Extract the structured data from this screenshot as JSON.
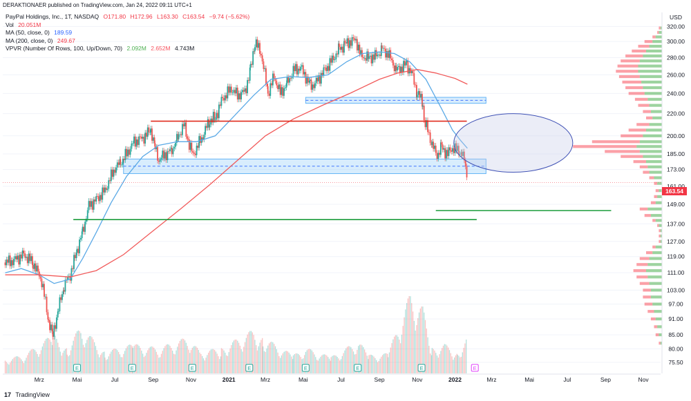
{
  "header": {
    "text": "DERAKTIONAER published on TradingView.com, Jan 24, 2022 09:11 UTC+1"
  },
  "legend": {
    "symbol": "PayPal Holdings, Inc., 1T, NASDAQ",
    "open": "O171.80",
    "high": "H172.96",
    "low": "L163.30",
    "close": "C163.54",
    "change": "−9.74 (−5.62%)",
    "vol_label": "Vol",
    "vol_value": "20.051M",
    "ma50_label": "MA (50, close, 0)",
    "ma50_value": "189.59",
    "ma200_label": "MA (200, close, 0)",
    "ma200_value": "249.67",
    "vpvr_label": "VPVR (Number Of Rows, 100, Up/Down, 70)",
    "vpvr_up": "2.092M",
    "vpvr_down": "2.652M",
    "vpvr_total": "4.743M"
  },
  "footer": {
    "logo": "17",
    "brand": "TradingView"
  },
  "colors": {
    "up": "#26a69a",
    "down": "#ef5350",
    "ma50": "#5aa9e6",
    "ma200": "#f15a5a",
    "vpvr_up": "#4caf50",
    "vpvr_down": "#f7525f",
    "price": "#f23645"
  },
  "chart_data": {
    "type": "candlestick",
    "title": "PayPal Holdings, Inc., 1T, NASDAQ",
    "currency": "USD",
    "y_scale": "log",
    "ylim": [
      72,
      340
    ],
    "y_ticks": [
      75.5,
      80.0,
      85.0,
      91.0,
      97.0,
      103.0,
      111.0,
      119.0,
      127.0,
      137.0,
      149.0,
      161.0,
      173.0,
      185.0,
      200.0,
      220.0,
      240.0,
      260.0,
      280.0,
      300.0,
      320.0
    ],
    "y_tick_labels": [
      "75.50",
      "80.00",
      "85.00",
      "91.00",
      "97.00",
      "103.00",
      "111.00",
      "119.00",
      "127.00",
      "137.00",
      "149.00",
      "161.00",
      "173.00",
      "185.00",
      "200.00",
      "220.00",
      "240.00",
      "260.00",
      "280.00",
      "300.00",
      "320.00"
    ],
    "x_ticks": [
      "Mrz",
      "Mai",
      "Jul",
      "Sep",
      "Nov",
      "2021",
      "Mrz",
      "Mai",
      "Jul",
      "Sep",
      "Nov",
      "2022",
      "Mrz",
      "Mai",
      "Jul",
      "Sep",
      "Nov"
    ],
    "x_tick_dates": [
      "2020-03-01",
      "2020-05-01",
      "2020-07-01",
      "2020-09-01",
      "2020-11-01",
      "2021-01-01",
      "2021-03-01",
      "2021-05-01",
      "2021-07-01",
      "2021-09-01",
      "2021-11-01",
      "2022-01-01",
      "2022-03-01",
      "2022-05-01",
      "2022-07-01",
      "2022-09-01",
      "2022-11-01"
    ],
    "last_price": 163.54,
    "last_price_label": "163.54",
    "price_path": [
      [
        "2020-01-06",
        116
      ],
      [
        "2020-01-20",
        117
      ],
      [
        "2020-02-05",
        120
      ],
      [
        "2020-02-20",
        116
      ],
      [
        "2020-03-05",
        107
      ],
      [
        "2020-03-16",
        90
      ],
      [
        "2020-03-23",
        85
      ],
      [
        "2020-04-01",
        95
      ],
      [
        "2020-04-10",
        105
      ],
      [
        "2020-04-20",
        110
      ],
      [
        "2020-05-01",
        122
      ],
      [
        "2020-05-10",
        132
      ],
      [
        "2020-05-20",
        148
      ],
      [
        "2020-06-01",
        152
      ],
      [
        "2020-06-15",
        158
      ],
      [
        "2020-07-01",
        174
      ],
      [
        "2020-07-10",
        178
      ],
      [
        "2020-07-20",
        185
      ],
      [
        "2020-08-01",
        195
      ],
      [
        "2020-08-15",
        198
      ],
      [
        "2020-08-28",
        205
      ],
      [
        "2020-09-04",
        190
      ],
      [
        "2020-09-10",
        180
      ],
      [
        "2020-09-18",
        184
      ],
      [
        "2020-10-01",
        188
      ],
      [
        "2020-10-12",
        200
      ],
      [
        "2020-10-20",
        210
      ],
      [
        "2020-10-27",
        196
      ],
      [
        "2020-11-04",
        184
      ],
      [
        "2020-11-12",
        192
      ],
      [
        "2020-11-20",
        200
      ],
      [
        "2020-12-01",
        214
      ],
      [
        "2020-12-10",
        216
      ],
      [
        "2020-12-22",
        235
      ],
      [
        "2021-01-05",
        245
      ],
      [
        "2021-01-15",
        238
      ],
      [
        "2021-01-27",
        242
      ],
      [
        "2021-02-05",
        265
      ],
      [
        "2021-02-12",
        300
      ],
      [
        "2021-02-22",
        285
      ],
      [
        "2021-03-05",
        240
      ],
      [
        "2021-03-15",
        258
      ],
      [
        "2021-03-25",
        240
      ],
      [
        "2021-04-05",
        250
      ],
      [
        "2021-04-15",
        265
      ],
      [
        "2021-04-27",
        268
      ],
      [
        "2021-05-05",
        258
      ],
      [
        "2021-05-12",
        248
      ],
      [
        "2021-05-20",
        250
      ],
      [
        "2021-06-01",
        262
      ],
      [
        "2021-06-15",
        275
      ],
      [
        "2021-06-28",
        290
      ],
      [
        "2021-07-07",
        296
      ],
      [
        "2021-07-15",
        300
      ],
      [
        "2021-07-25",
        302
      ],
      [
        "2021-08-02",
        282
      ],
      [
        "2021-08-15",
        280
      ],
      [
        "2021-08-27",
        282
      ],
      [
        "2021-09-05",
        290
      ],
      [
        "2021-09-15",
        285
      ],
      [
        "2021-09-28",
        265
      ],
      [
        "2021-10-06",
        268
      ],
      [
        "2021-10-15",
        272
      ],
      [
        "2021-10-25",
        258
      ],
      [
        "2021-11-01",
        240
      ],
      [
        "2021-11-10",
        232
      ],
      [
        "2021-11-12",
        213
      ],
      [
        "2021-11-18",
        205
      ],
      [
        "2021-11-25",
        192
      ],
      [
        "2021-12-03",
        184
      ],
      [
        "2021-12-10",
        190
      ],
      [
        "2021-12-20",
        185
      ],
      [
        "2021-12-28",
        190
      ],
      [
        "2022-01-05",
        188
      ],
      [
        "2022-01-12",
        186
      ],
      [
        "2022-01-18",
        176
      ],
      [
        "2022-01-21",
        163.54
      ]
    ],
    "volume_ylim": [
      0,
      52
    ],
    "volume_path": [
      [
        "2020-01-06",
        8
      ],
      [
        "2020-02-05",
        10
      ],
      [
        "2020-03-10",
        18
      ],
      [
        "2020-03-23",
        22
      ],
      [
        "2020-04-15",
        14
      ],
      [
        "2020-05-07",
        26
      ],
      [
        "2020-06-15",
        12
      ],
      [
        "2020-07-30",
        16
      ],
      [
        "2020-09-10",
        14
      ],
      [
        "2020-10-28",
        20
      ],
      [
        "2020-11-15",
        12
      ],
      [
        "2020-12-20",
        14
      ],
      [
        "2021-02-10",
        24
      ],
      [
        "2021-02-25",
        20
      ],
      [
        "2021-04-15",
        10
      ],
      [
        "2021-05-05",
        14
      ],
      [
        "2021-06-15",
        9
      ],
      [
        "2021-07-29",
        18
      ],
      [
        "2021-08-15",
        10
      ],
      [
        "2021-09-15",
        11
      ],
      [
        "2021-10-21",
        44
      ],
      [
        "2021-11-10",
        36
      ],
      [
        "2021-11-25",
        14
      ],
      [
        "2021-12-15",
        16
      ],
      [
        "2022-01-05",
        12
      ],
      [
        "2022-01-21",
        20
      ]
    ],
    "series": [
      {
        "name": "MA (50, close, 0)",
        "value_label": "189.59",
        "path": [
          [
            "2020-01-06",
            111
          ],
          [
            "2020-02-01",
            113
          ],
          [
            "2020-03-01",
            110
          ],
          [
            "2020-03-25",
            106
          ],
          [
            "2020-04-20",
            108
          ],
          [
            "2020-05-10",
            118
          ],
          [
            "2020-06-01",
            132
          ],
          [
            "2020-06-25",
            150
          ],
          [
            "2020-07-20",
            168
          ],
          [
            "2020-08-15",
            183
          ],
          [
            "2020-09-10",
            192
          ],
          [
            "2020-10-10",
            195
          ],
          [
            "2020-11-10",
            195
          ],
          [
            "2020-12-10",
            200
          ],
          [
            "2021-01-10",
            218
          ],
          [
            "2021-02-10",
            238
          ],
          [
            "2021-03-10",
            255
          ],
          [
            "2021-04-10",
            258
          ],
          [
            "2021-05-10",
            257
          ],
          [
            "2021-06-10",
            260
          ],
          [
            "2021-07-10",
            275
          ],
          [
            "2021-08-05",
            285
          ],
          [
            "2021-09-01",
            287
          ],
          [
            "2021-09-25",
            285
          ],
          [
            "2021-10-20",
            275
          ],
          [
            "2021-11-15",
            255
          ],
          [
            "2021-12-10",
            225
          ],
          [
            "2021-12-28",
            205
          ],
          [
            "2022-01-10",
            196
          ],
          [
            "2022-01-21",
            189.59
          ]
        ]
      },
      {
        "name": "MA (200, close, 0)",
        "value_label": "249.67",
        "path": [
          [
            "2020-01-06",
            110
          ],
          [
            "2020-03-01",
            110
          ],
          [
            "2020-04-20",
            109
          ],
          [
            "2020-06-01",
            112
          ],
          [
            "2020-07-15",
            120
          ],
          [
            "2020-09-01",
            133
          ],
          [
            "2020-10-15",
            146
          ],
          [
            "2020-12-01",
            162
          ],
          [
            "2021-01-15",
            180
          ],
          [
            "2021-03-01",
            200
          ],
          [
            "2021-04-15",
            215
          ],
          [
            "2021-06-01",
            228
          ],
          [
            "2021-07-15",
            240
          ],
          [
            "2021-09-01",
            255
          ],
          [
            "2021-10-01",
            262
          ],
          [
            "2021-11-01",
            266
          ],
          [
            "2021-12-01",
            262
          ],
          [
            "2022-01-01",
            256
          ],
          [
            "2022-01-21",
            249.67
          ]
        ]
      }
    ],
    "annotations": {
      "zones": [
        {
          "from": "2021-05-05",
          "to": "2022-02-20",
          "low": 230,
          "high": 236
        },
        {
          "from": "2020-07-15",
          "to": "2022-02-20",
          "low": 170,
          "high": 181
        }
      ],
      "hlines": [
        {
          "from": "2020-08-28",
          "to": "2022-01-20",
          "value": 213,
          "color": "#e02a1c"
        },
        {
          "from": "2020-04-25",
          "to": "2022-02-05",
          "value": 139.5,
          "color": "#1a9b3a"
        },
        {
          "from": "2021-12-01",
          "to": "2022-09-10",
          "value": 145,
          "color": "#1a9b3a"
        }
      ],
      "ellipse": {
        "cx": "2022-04-05",
        "cy": 195,
        "x_half_days": 96,
        "y_top": 220,
        "y_bottom": 171
      },
      "dashed_price_line": 163.54,
      "markers": [
        {
          "date": "2020-05-01",
          "label": "E",
          "kind": "earnings"
        },
        {
          "date": "2020-07-29",
          "label": "E",
          "kind": "earnings"
        },
        {
          "date": "2020-11-03",
          "label": "E",
          "kind": "earnings"
        },
        {
          "date": "2021-02-03",
          "label": "E",
          "kind": "earnings"
        },
        {
          "date": "2021-05-05",
          "label": "E",
          "kind": "earnings"
        },
        {
          "date": "2021-07-28",
          "label": "E",
          "kind": "earnings"
        },
        {
          "date": "2021-11-08",
          "label": "E",
          "kind": "earnings"
        },
        {
          "date": "2022-02-02",
          "label": "E",
          "kind": "upcoming"
        }
      ]
    },
    "volume_profile": {
      "rows": [
        {
          "price": 318,
          "up": 1,
          "down": 1
        },
        {
          "price": 312,
          "up": 2,
          "down": 1
        },
        {
          "price": 306,
          "up": 4,
          "down": 2
        },
        {
          "price": 300,
          "up": 6,
          "down": 5
        },
        {
          "price": 294,
          "up": 8,
          "down": 7
        },
        {
          "price": 288,
          "up": 10,
          "down": 9
        },
        {
          "price": 282,
          "up": 12,
          "down": 11
        },
        {
          "price": 276,
          "up": 14,
          "down": 12
        },
        {
          "price": 270,
          "up": 15,
          "down": 13
        },
        {
          "price": 264,
          "up": 15,
          "down": 14
        },
        {
          "price": 258,
          "up": 14,
          "down": 13
        },
        {
          "price": 252,
          "up": 13,
          "down": 12
        },
        {
          "price": 246,
          "up": 12,
          "down": 11
        },
        {
          "price": 240,
          "up": 11,
          "down": 10
        },
        {
          "price": 234,
          "up": 9,
          "down": 8
        },
        {
          "price": 228,
          "up": 8,
          "down": 7
        },
        {
          "price": 222,
          "up": 7,
          "down": 5
        },
        {
          "price": 216,
          "up": 6,
          "down": 4
        },
        {
          "price": 210,
          "up": 8,
          "down": 8
        },
        {
          "price": 205,
          "up": 10,
          "down": 11
        },
        {
          "price": 200,
          "up": 12,
          "down": 14
        },
        {
          "price": 195,
          "up": 14,
          "down": 30
        },
        {
          "price": 191,
          "up": 16,
          "down": 40
        },
        {
          "price": 187,
          "up": 14,
          "down": 22
        },
        {
          "price": 183,
          "up": 12,
          "down": 14
        },
        {
          "price": 179,
          "up": 10,
          "down": 8
        },
        {
          "price": 175,
          "up": 9,
          "down": 5
        },
        {
          "price": 171,
          "up": 8,
          "down": 4
        },
        {
          "price": 167,
          "up": 5,
          "down": 3
        },
        {
          "price": 163,
          "up": 3,
          "down": 2
        },
        {
          "price": 158,
          "up": 2,
          "down": 2
        },
        {
          "price": 154,
          "up": 3,
          "down": 2
        },
        {
          "price": 150,
          "up": 4,
          "down": 3
        },
        {
          "price": 146,
          "up": 9,
          "down": 5
        },
        {
          "price": 142,
          "up": 7,
          "down": 4
        },
        {
          "price": 139,
          "up": 4,
          "down": 2
        },
        {
          "price": 136,
          "up": 2,
          "down": 1
        },
        {
          "price": 133,
          "up": 1,
          "down": 1
        },
        {
          "price": 130,
          "up": 1,
          "down": 1
        },
        {
          "price": 127,
          "up": 1,
          "down": 1
        },
        {
          "price": 124,
          "up": 4,
          "down": 2
        },
        {
          "price": 121,
          "up": 6,
          "down": 4
        },
        {
          "price": 118,
          "up": 8,
          "down": 6
        },
        {
          "price": 115,
          "up": 9,
          "down": 7
        },
        {
          "price": 112,
          "up": 10,
          "down": 8
        },
        {
          "price": 109,
          "up": 9,
          "down": 7
        },
        {
          "price": 106,
          "up": 8,
          "down": 6
        },
        {
          "price": 103,
          "up": 7,
          "down": 5
        },
        {
          "price": 100,
          "up": 7,
          "down": 5
        },
        {
          "price": 97,
          "up": 6,
          "down": 5
        },
        {
          "price": 94,
          "up": 5,
          "down": 4
        },
        {
          "price": 91,
          "up": 4,
          "down": 3
        },
        {
          "price": 88,
          "up": 3,
          "down": 2
        },
        {
          "price": 85,
          "up": 2,
          "down": 2
        },
        {
          "price": 82,
          "up": 1,
          "down": 1
        }
      ]
    }
  }
}
